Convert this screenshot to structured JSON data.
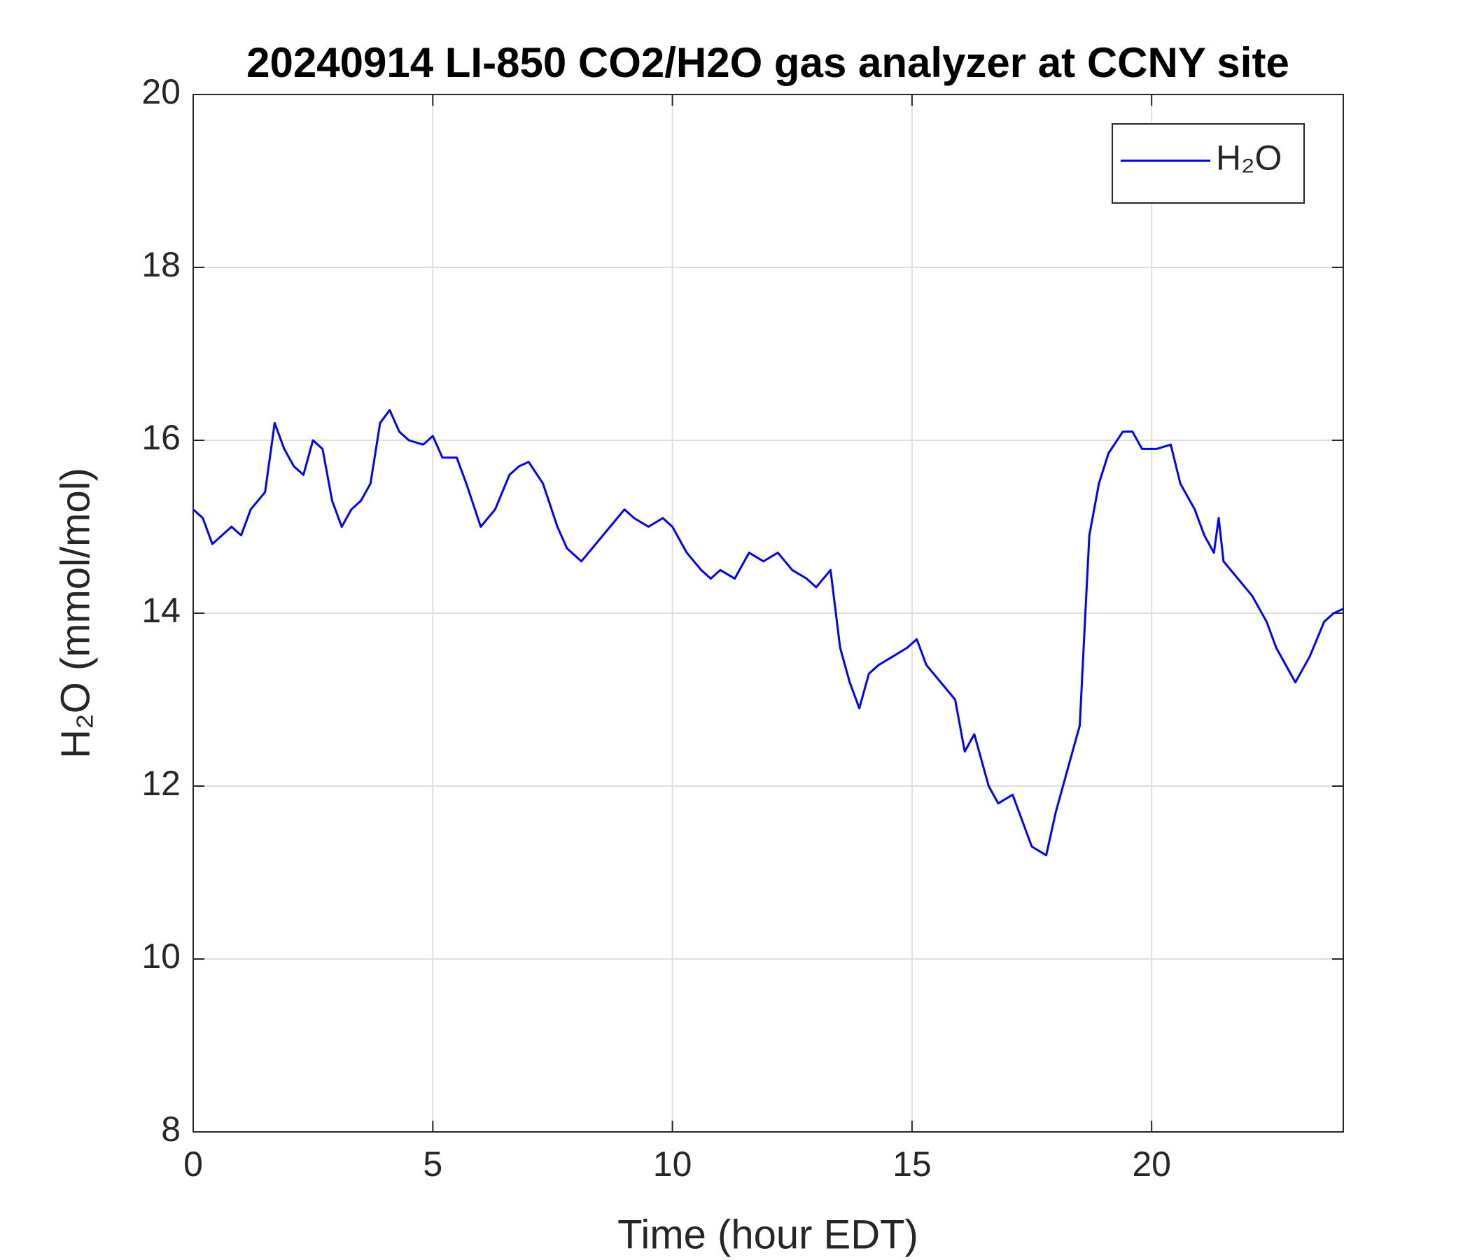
{
  "chart_data": {
    "type": "line",
    "title": "20240914 LI-850 CO2/H2O gas analyzer at CCNY site",
    "x_label": "Time (hour EDT)",
    "y_label": "H₂O (mmol/mol)",
    "x": [
      0,
      0.2,
      0.4,
      0.6,
      0.8,
      1.0,
      1.2,
      1.5,
      1.7,
      1.9,
      2.1,
      2.3,
      2.5,
      2.7,
      2.9,
      3.1,
      3.3,
      3.5,
      3.7,
      3.9,
      4.1,
      4.3,
      4.5,
      4.8,
      5.0,
      5.2,
      5.5,
      5.7,
      6.0,
      6.3,
      6.6,
      6.8,
      7.0,
      7.3,
      7.6,
      7.8,
      8.1,
      8.4,
      8.7,
      9.0,
      9.2,
      9.5,
      9.8,
      10.0,
      10.3,
      10.6,
      10.8,
      11.0,
      11.3,
      11.6,
      11.9,
      12.2,
      12.5,
      12.8,
      13.0,
      13.3,
      13.5,
      13.7,
      13.9,
      14.1,
      14.3,
      14.6,
      14.9,
      15.1,
      15.3,
      15.6,
      15.9,
      16.1,
      16.3,
      16.6,
      16.8,
      17.1,
      17.3,
      17.5,
      17.8,
      18.0,
      18.3,
      18.5,
      18.6,
      18.7,
      18.9,
      19.1,
      19.4,
      19.6,
      19.8,
      20.1,
      20.4,
      20.6,
      20.9,
      21.1,
      21.3,
      21.4,
      21.5,
      21.8,
      22.1,
      22.4,
      22.6,
      22.8,
      23.0,
      23.3,
      23.6,
      23.8,
      24.0
    ],
    "series": [
      {
        "name": "H₂O",
        "color": "#0000ff",
        "values": [
          15.2,
          15.1,
          14.8,
          14.9,
          15.0,
          14.9,
          15.2,
          15.4,
          16.2,
          15.9,
          15.7,
          15.6,
          16.0,
          15.9,
          15.3,
          15.0,
          15.2,
          15.3,
          15.5,
          16.2,
          16.35,
          16.1,
          16.0,
          15.95,
          16.05,
          15.8,
          15.8,
          15.5,
          15.0,
          15.2,
          15.6,
          15.7,
          15.75,
          15.5,
          15.0,
          14.75,
          14.6,
          14.8,
          15.0,
          15.2,
          15.1,
          15.0,
          15.1,
          15.0,
          14.7,
          14.5,
          14.4,
          14.5,
          14.4,
          14.7,
          14.6,
          14.7,
          14.5,
          14.4,
          14.3,
          14.5,
          13.6,
          13.2,
          12.9,
          13.3,
          13.4,
          13.5,
          13.6,
          13.7,
          13.4,
          13.2,
          13.0,
          12.4,
          12.6,
          12.0,
          11.8,
          11.9,
          11.6,
          11.3,
          11.2,
          11.7,
          12.3,
          12.7,
          13.8,
          14.9,
          15.5,
          15.85,
          16.1,
          16.1,
          15.9,
          15.9,
          15.95,
          15.5,
          15.2,
          14.9,
          14.7,
          15.1,
          14.6,
          14.4,
          14.2,
          13.9,
          13.6,
          13.4,
          13.2,
          13.5,
          13.9,
          14.0,
          14.05
        ]
      }
    ],
    "xlim": [
      0,
      24
    ],
    "xticks": [
      0,
      5,
      10,
      15,
      20
    ],
    "ylim": [
      8,
      20
    ],
    "yticks": [
      8,
      10,
      12,
      14,
      16,
      18,
      20
    ],
    "grid": true,
    "legend": "upper right"
  }
}
